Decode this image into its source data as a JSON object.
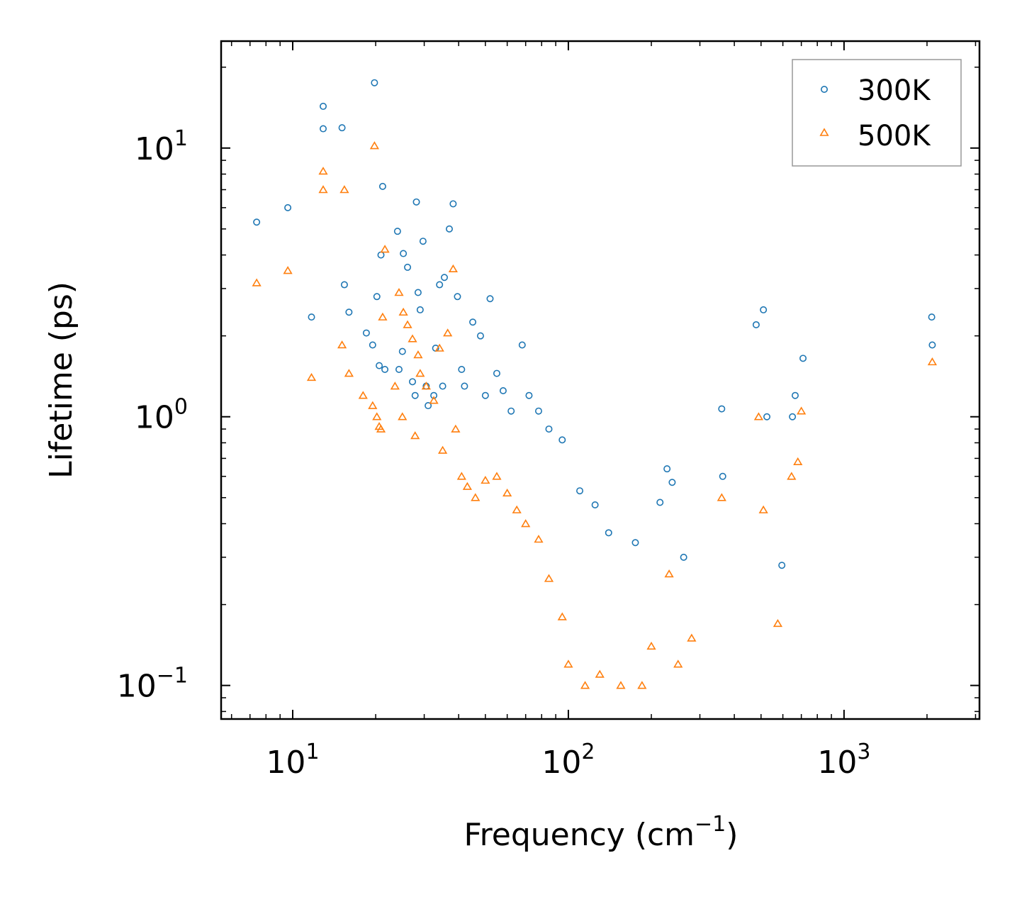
{
  "chart_data": {
    "type": "scatter",
    "title": "",
    "xlabel": "Frequency (cm",
    "xlabel_sup": "−1",
    "xlabel_tail": ")",
    "ylabel": "Lifetime (ps)",
    "xscale": "log",
    "yscale": "log",
    "xlim": [
      5.5,
      3100
    ],
    "ylim": [
      0.075,
      25
    ],
    "x_ticks": [
      {
        "value": 10,
        "base": "10",
        "exp": "1"
      },
      {
        "value": 100,
        "base": "10",
        "exp": "2"
      },
      {
        "value": 1000,
        "base": "10",
        "exp": "3"
      }
    ],
    "y_ticks": [
      {
        "value": 10,
        "base": "10",
        "exp": "1"
      },
      {
        "value": 1,
        "base": "10",
        "exp": "0"
      },
      {
        "value": 0.1,
        "base": "10",
        "exp": "−1"
      }
    ],
    "legend_position": "top-right",
    "series": [
      {
        "name": "300K",
        "color": "#1f77b4",
        "marker": "circle",
        "x": [
          7.4,
          9.6,
          11.7,
          12.9,
          12.9,
          15.1,
          15.4,
          16.0,
          18.5,
          19.5,
          19.8,
          20.2,
          20.6,
          20.9,
          21.2,
          21.6,
          24.0,
          24.3,
          25.0,
          25.2,
          26.1,
          27.2,
          27.8,
          28.1,
          28.5,
          29.0,
          29.7,
          30.5,
          31.0,
          32.5,
          33.0,
          34.1,
          35.0,
          35.5,
          37.0,
          38.2,
          39.6,
          41.0,
          42.0,
          45.0,
          48.0,
          50.0,
          52.0,
          55.0,
          58.0,
          62.0,
          68.0,
          72.0,
          78.0,
          85.0,
          95.0,
          110.0,
          125.0,
          140.0,
          175.0,
          215.0,
          228.0,
          238.0,
          262.0,
          360.0,
          363.0,
          480.0,
          510.0,
          525.0,
          595.0,
          650.0,
          665.0,
          710.0,
          2080.0,
          2090.0
        ],
        "y": [
          5.3,
          6.0,
          2.35,
          14.3,
          11.8,
          11.9,
          3.1,
          2.45,
          2.05,
          1.85,
          17.5,
          2.8,
          1.55,
          4.0,
          7.2,
          1.5,
          4.9,
          1.5,
          1.75,
          4.05,
          3.6,
          1.35,
          1.2,
          6.3,
          2.9,
          2.5,
          4.5,
          1.3,
          1.1,
          1.2,
          1.8,
          3.1,
          1.3,
          3.3,
          5.0,
          6.2,
          2.8,
          1.5,
          1.3,
          2.25,
          2.0,
          1.2,
          2.75,
          1.45,
          1.25,
          1.05,
          1.85,
          1.2,
          1.05,
          0.9,
          0.82,
          0.53,
          0.47,
          0.37,
          0.34,
          0.48,
          0.64,
          0.57,
          0.3,
          1.07,
          0.6,
          2.2,
          2.5,
          1.0,
          0.28,
          1.0,
          1.2,
          1.65,
          2.35,
          1.85
        ]
      },
      {
        "name": "500K",
        "color": "#ff7f0e",
        "marker": "triangle",
        "x": [
          7.4,
          9.6,
          11.7,
          12.9,
          12.9,
          15.1,
          15.4,
          16.0,
          18.0,
          19.5,
          19.8,
          20.2,
          20.6,
          20.9,
          21.2,
          21.6,
          23.5,
          24.3,
          25.0,
          25.2,
          26.1,
          27.2,
          27.8,
          28.5,
          29.0,
          30.5,
          32.5,
          34.1,
          35.0,
          36.5,
          38.2,
          39.0,
          41.0,
          43.0,
          46.0,
          50.0,
          55.0,
          60.0,
          65.0,
          70.0,
          78.0,
          85.0,
          95.0,
          100.0,
          115.0,
          130.0,
          155.0,
          185.0,
          200.0,
          232.0,
          250.0,
          280.0,
          360.0,
          490.0,
          510.0,
          575.0,
          645.0,
          680.0,
          700.0,
          2090.0
        ],
        "y": [
          3.15,
          3.5,
          1.4,
          8.2,
          7.0,
          1.85,
          7.0,
          1.45,
          1.2,
          1.1,
          10.2,
          1.0,
          0.92,
          0.9,
          2.35,
          4.2,
          1.3,
          2.9,
          1.0,
          2.45,
          2.2,
          1.95,
          0.85,
          1.7,
          1.45,
          1.3,
          1.15,
          1.8,
          0.75,
          2.05,
          3.55,
          0.9,
          0.6,
          0.55,
          0.5,
          0.58,
          0.6,
          0.52,
          0.45,
          0.4,
          0.35,
          0.25,
          0.18,
          0.12,
          0.1,
          0.11,
          0.1,
          0.1,
          0.14,
          0.26,
          0.12,
          0.15,
          0.5,
          1.0,
          0.45,
          0.17,
          0.6,
          0.68,
          1.05,
          1.6
        ]
      }
    ]
  }
}
